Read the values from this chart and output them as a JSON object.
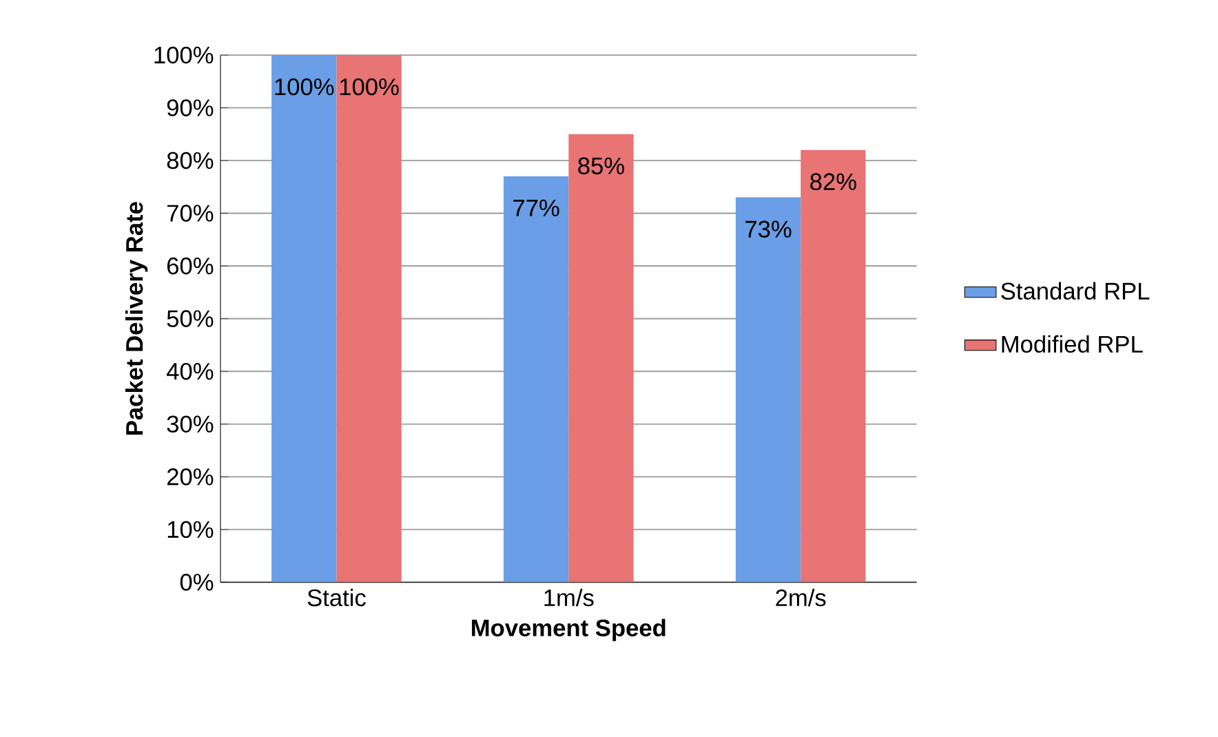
{
  "chart_data": {
    "type": "bar",
    "xlabel": "Movement Speed",
    "ylabel": "Packet Delivery Rate",
    "categories": [
      "Static",
      "1m/s",
      "2m/s"
    ],
    "series": [
      {
        "name": "Standard RPL",
        "color": "#6a9ee6",
        "values": [
          100,
          77,
          73
        ],
        "value_labels": [
          "100%",
          "77%",
          "73%"
        ]
      },
      {
        "name": "Modified RPL",
        "color": "#e87474",
        "values": [
          100,
          85,
          82
        ],
        "value_labels": [
          "100%",
          "85%",
          "82%"
        ]
      }
    ],
    "ylim": [
      0,
      100
    ],
    "yticks": [
      {
        "value": 0,
        "label": "0%"
      },
      {
        "value": 10,
        "label": "10%"
      },
      {
        "value": 20,
        "label": "20%"
      },
      {
        "value": 30,
        "label": "30%"
      },
      {
        "value": 40,
        "label": "40%"
      },
      {
        "value": 50,
        "label": "50%"
      },
      {
        "value": 60,
        "label": "60%"
      },
      {
        "value": 70,
        "label": "70%"
      },
      {
        "value": 80,
        "label": "80%"
      },
      {
        "value": 90,
        "label": "90%"
      },
      {
        "value": 100,
        "label": "100%"
      }
    ],
    "grid": "y",
    "legend": "right"
  }
}
